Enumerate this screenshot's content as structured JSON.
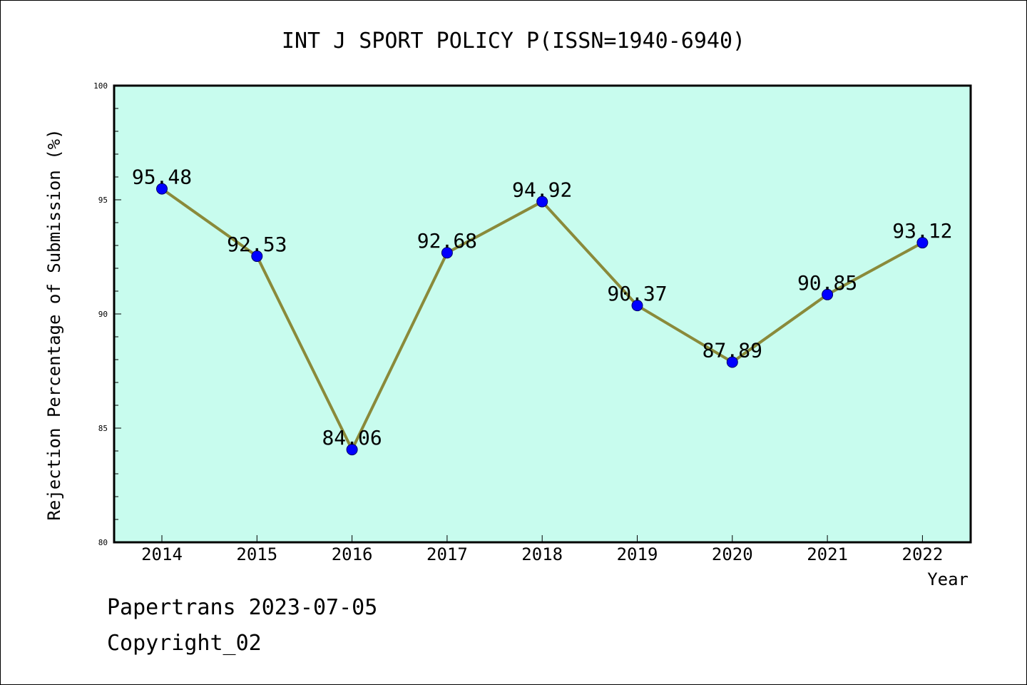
{
  "chart_data": {
    "type": "line",
    "title": "INT J SPORT POLICY P(ISSN=1940-6940)",
    "xlabel": "Year",
    "ylabel": "Rejection Percentage of Submission (%)",
    "categories": [
      "2014",
      "2015",
      "2016",
      "2017",
      "2018",
      "2019",
      "2020",
      "2021",
      "2022"
    ],
    "series": [
      {
        "values": [
          95.48,
          92.53,
          84.06,
          92.68,
          94.92,
          90.37,
          87.89,
          90.85,
          93.12
        ],
        "labels": [
          "95.48",
          "92.53",
          "84.06",
          "92.68",
          "94.92",
          "90.37",
          "87.89",
          "90.85",
          "93.12"
        ]
      }
    ],
    "ylim": [
      80,
      100
    ],
    "yticks": [
      80,
      85,
      90,
      95,
      100
    ],
    "ytick_labels": [
      "80",
      "85",
      "90",
      "95",
      "100"
    ],
    "grid": false,
    "colors": {
      "plot_background": "#c8fcee",
      "line": "#8a8a3a",
      "marker": "#0000ff",
      "frame": "#000000"
    }
  },
  "footer": {
    "line1": "Papertrans 2023-07-05",
    "line2": "Copyright_02"
  }
}
